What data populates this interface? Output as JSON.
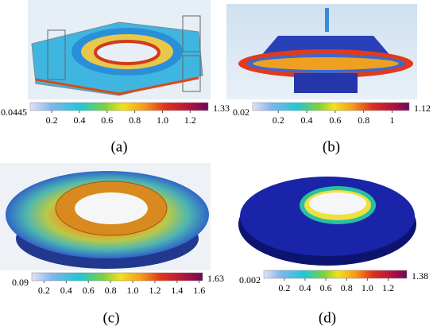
{
  "panels": [
    {
      "label": "(a)",
      "colorbar": {
        "lim": [
          0.0445,
          1.33
        ],
        "ticks": [
          0.2,
          0.4,
          0.6,
          0.8,
          {
            "value": 1,
            "label": "1.0"
          },
          1.2
        ]
      }
    },
    {
      "label": "(b)",
      "colorbar": {
        "lim": [
          0.02,
          1.12
        ],
        "ticks": [
          0.2,
          0.4,
          0.6,
          0.8,
          1
        ]
      }
    },
    {
      "label": "(c)",
      "colorbar": {
        "lim": [
          0.09,
          1.63
        ],
        "ticks": [
          0.2,
          0.4,
          0.6,
          0.8,
          {
            "value": 1,
            "label": "1.0"
          },
          1.2,
          1.4,
          1.6
        ]
      }
    },
    {
      "label": "(d)",
      "colorbar": {
        "lim": [
          0.002,
          1.38
        ],
        "ticks": [
          0.2,
          0.4,
          0.6,
          0.8,
          {
            "value": 1,
            "label": "1.0"
          },
          1.2
        ]
      }
    }
  ]
}
